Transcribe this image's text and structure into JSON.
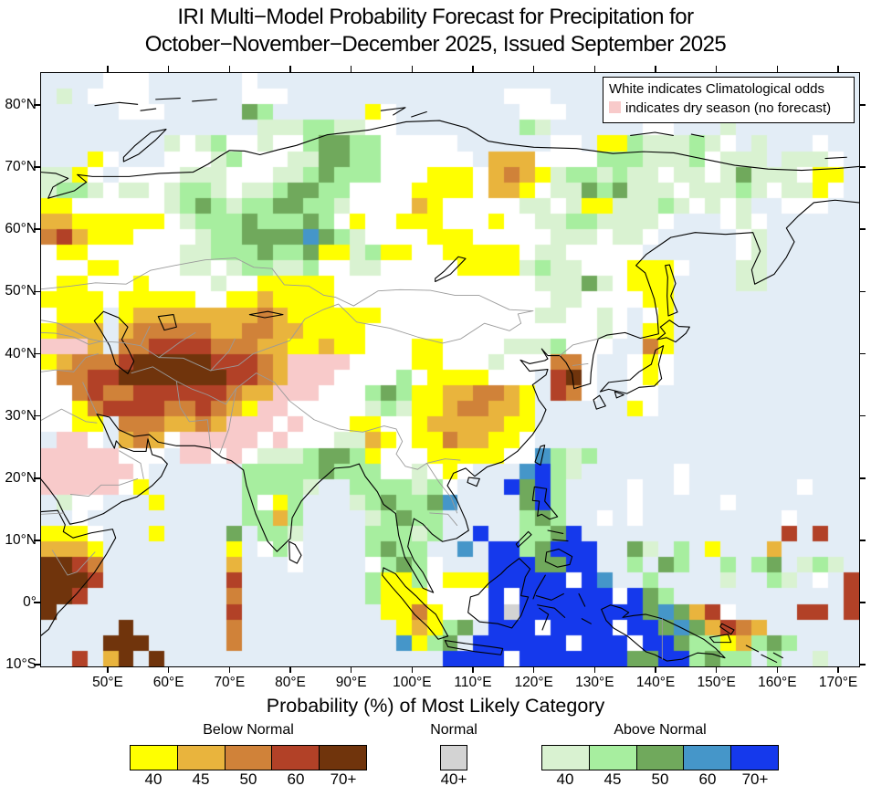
{
  "title": {
    "line1": "IRI Multi−Model Probability Forecast for Precipitation for",
    "line2": "October−November−December 2025, Issued September 2025"
  },
  "map": {
    "legend_box": {
      "line1": "White indicates Climatological odds",
      "line2": "indicates dry season (no forecast)",
      "dry_season_color": "#f8caca"
    },
    "axes": {
      "lat_ticks": [
        {
          "v": 80,
          "label": "80°N"
        },
        {
          "v": 70,
          "label": "70°N"
        },
        {
          "v": 60,
          "label": "60°N"
        },
        {
          "v": 50,
          "label": "50°N"
        },
        {
          "v": 40,
          "label": "40°N"
        },
        {
          "v": 30,
          "label": "30°N"
        },
        {
          "v": 20,
          "label": "20°N"
        },
        {
          "v": 10,
          "label": "10°N"
        },
        {
          "v": 0,
          "label": "0°"
        },
        {
          "v": -10,
          "label": "10°S"
        }
      ],
      "lon_ticks": [
        {
          "v": 50,
          "label": "50°E"
        },
        {
          "v": 60,
          "label": "60°E"
        },
        {
          "v": 70,
          "label": "70°E"
        },
        {
          "v": 80,
          "label": "80°E"
        },
        {
          "v": 90,
          "label": "90°E"
        },
        {
          "v": 100,
          "label": "100°E"
        },
        {
          "v": 110,
          "label": "110°E"
        },
        {
          "v": 120,
          "label": "120°E"
        },
        {
          "v": 130,
          "label": "130°E"
        },
        {
          "v": 140,
          "label": "140°E"
        },
        {
          "v": 150,
          "label": "150°E"
        },
        {
          "v": 160,
          "label": "160°E"
        },
        {
          "v": 170,
          "label": "170°E"
        }
      ]
    },
    "palette": {
      "y": "#ffff00",
      "o": "#e9b43d",
      "r": "#d08239",
      "R": "#b24127",
      "B": "#70340c",
      "g": "#d3d3d3",
      "a": "#d9f2d1",
      "b": "#a7ee9f",
      "c": "#70a95c",
      "d": "#4596c9",
      "e": "#1539ec",
      "p": "#f8caca",
      "w": "#ffffff",
      ".": "#e3edf6"
    },
    "palette_meaning": {
      "y": "below-normal-40",
      "o": "below-normal-45",
      "r": "below-normal-50",
      "R": "below-normal-60",
      "B": "below-normal-70+",
      "g": "normal-40+",
      "a": "above-normal-40",
      "b": "above-normal-45",
      "c": "above-normal-50",
      "d": "above-normal-60",
      "e": "above-normal-70+",
      "p": "dry-season-no-forecast",
      "w": "climatological-odds",
      ".": "ocean"
    },
    "grid": [
      "....www......w.......................................",
      ".a.wwww......www..............www....................",
      ".....www.....cb......yw........www...................",
      "..............aaabbaaww........ba......ww...a........",
      "........awabwwawwbccbbwwwww......ww.yybaaabaw.a...w..",
      "...yw...wwwabwwwaaccbbwwwwww.ooowwwwbbbaaabwaaa.aaaw.",
      "aayw.wwwwaaawwwaabcbbbwwwyyyworoyabbabaawaawacaaawyy.",
      "abbawaawabbawaabccbbwwwwyyyywooywaacbcaaawaaabawaayw.",
      "yywwwwwwabcbabbccbbawwwwoywwwwwaawayyaaabawawa..www..",
      "ooyyyyyywabbbcbbbcbwywwyyywwwywwaabbaaaaw...waw......",
      "rRoyyywwwwabbccccdcbawwwwyyywwwwwaaawaaw.....wa......",
      "wyywwwwwwaabbbcbbcyyabyywwyyyyywaawwwww......wa......",
      "wwwyywwwwaawabbaabwwaawwwwwyyyyabaawwwyyyw...aa......",
      "wyywwwywwwwawwyyyyywwwwwwwwwwwwwaaacawyyy....aa......",
      "yyyywyyyyywwyyoyyyywwwwwwwwwwwwwwaawwwwyy............",
      "wyyy.yooooooooroyyyyyywwwwwwwwwwaawwaw.wy............",
      "yooo.orrrrroorrooyyyywwwwwwwwwwwwwwwaw.yy............",
      "pppo.rrRRRRrrrooyyoyywwwyywwwwaaabwww..ry............",
      "yorrrRBBBBBRRRroppppwwwwyywwwawwwrrw..wyw............",
      "wrrRRBBBBBBBRRropppwwwwbwyyyywww.RBw..wyw............",
      "wwrRrrRRRRRRroopppwwwbcbyyoorroy.Rrw..ww.............",
      "wwyrRRRRrrRroyppwwwwwabayyorrooy......yw.............",
      "wwyy.rrroorop",
      ".ppw.orowpppppwpwwwaaoywyyrooyyw.....................",
      "pppppwww.ppwpwaaabccbywwwyyyyywwdbab.................",
      "ppppppw......bbbbbcbbbwwawyw...deba......w...........",
      "pppppwy......bbbba..bbbbabw...eceb....w..w.......w...",
      ".aww...y.....bwyb...abcbbcd....ceb....w.....w........",
      "..w..........bbob....abcbb.....bcb..w.w.........w....",
      "yyyw...y....c.bba....bbbab..e..bbce.............R.R..",
      "oooy........y.wbw....bcbb..d.eebceee..ca.b.y...o.....",
      "BBRr........o...w....wbcbw...eeeccee..b.cb..b.bc.aba.",
      "BBBR........R........byybwyyyeeeeewed..b....a..ba.w.R",
      "BBR.........r........byyywwwweweeeeeewecb...........R",
      "B...........R.........yyrywwwegeeeeeeeecdcoRw....RR.R",
      ".....B......r..........yoybc.eeeweeeeweecdcoRro......",
      "....BBB.....r..........dybc.eeeeeeweeeweecbbyobcb....",
      "..R.oB.B..................eeeeweeeeeeecceebcbb.b..a.."
    ],
    "grid_row22_rest": "ppwpwwwyywwyoooooyy....................."
  },
  "colorbar": {
    "title": "Probability (%) of Most Likely Category",
    "sections": [
      {
        "name": "Below Normal",
        "labels": [
          "40",
          "45",
          "50",
          "60",
          "70+"
        ],
        "colors": [
          "#ffff00",
          "#e9b43d",
          "#d08239",
          "#b24127",
          "#70340c"
        ]
      },
      {
        "name": "Normal",
        "labels": [
          "40+"
        ],
        "colors": [
          "#d3d3d3"
        ]
      },
      {
        "name": "Above Normal",
        "labels": [
          "40",
          "45",
          "50",
          "60",
          "70+"
        ],
        "colors": [
          "#d9f2d1",
          "#a7ee9f",
          "#70a95c",
          "#4596c9",
          "#1539ec"
        ]
      }
    ]
  }
}
